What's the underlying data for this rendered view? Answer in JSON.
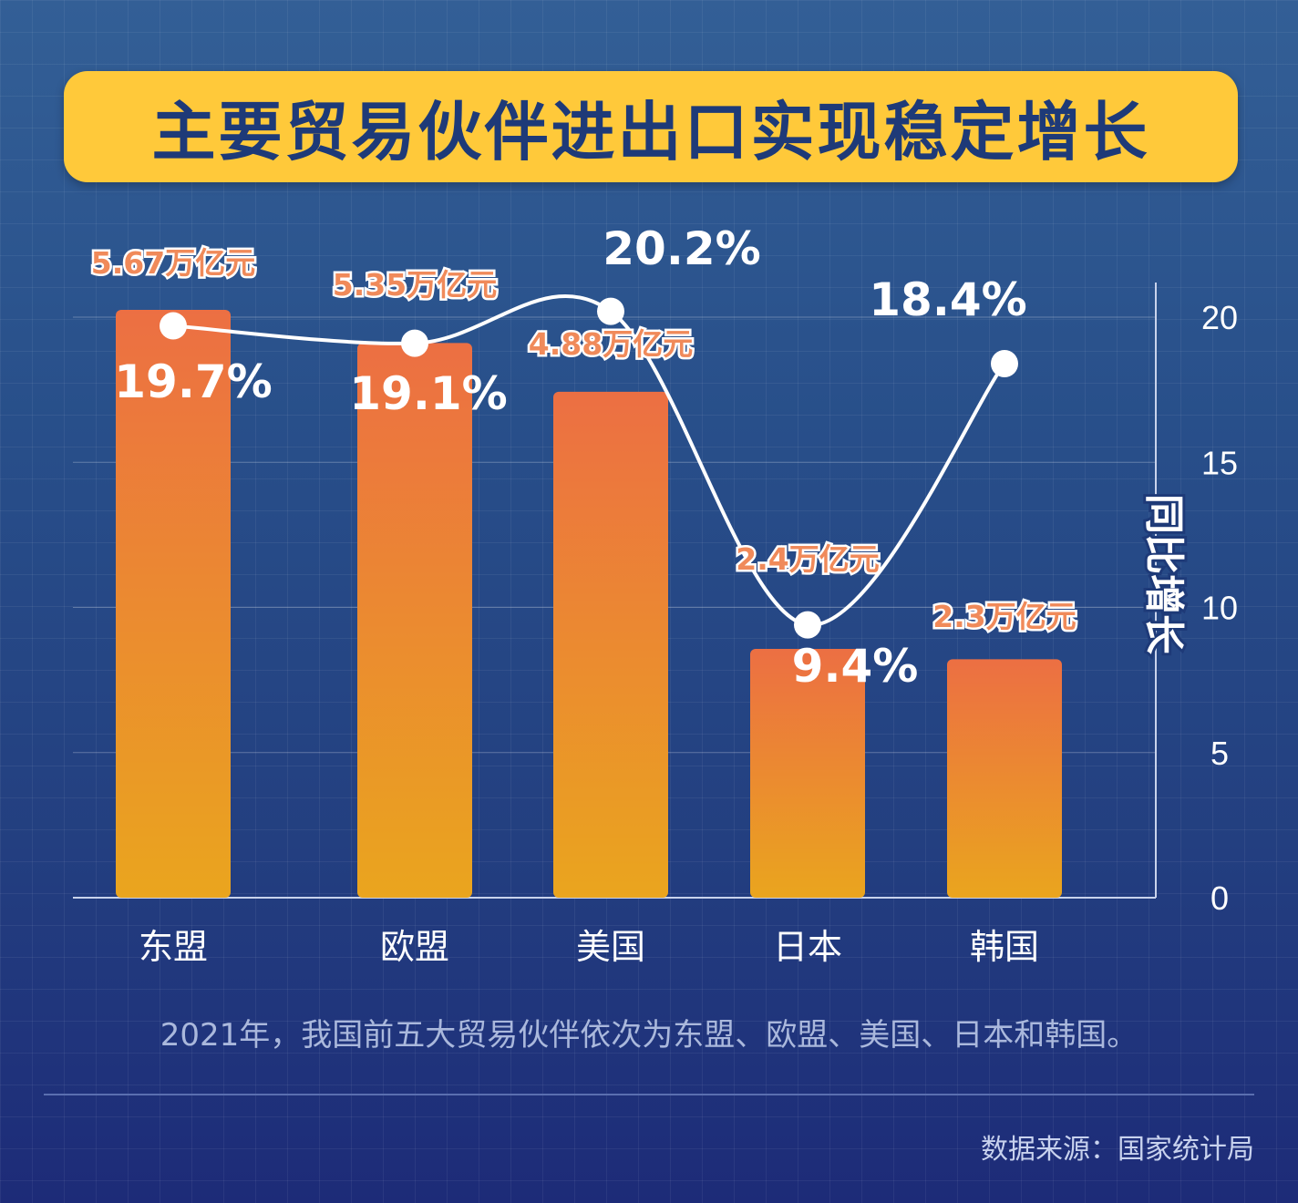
{
  "title": "主要贸易伙伴进出口实现稳定增长",
  "caption": "2021年，我国前五大贸易伙伴依次为东盟、欧盟、美国、日本和韩国。",
  "source": "数据来源：国家统计局",
  "colors": {
    "bar_top": "#ec6f43",
    "bar_bottom": "#eaa51e",
    "line": "#ffffff",
    "amount_label": "#f08a5a",
    "title_banner": "#ffc93a",
    "title_text": "#1e3a78"
  },
  "chart_data": {
    "type": "bar",
    "categories": [
      "东盟",
      "欧盟",
      "美国",
      "日本",
      "韩国"
    ],
    "series": [
      {
        "kind": "bar",
        "values": [
          5.67,
          5.35,
          4.88,
          2.4,
          2.3
        ],
        "labels": [
          "5.67万亿元",
          "5.35万亿元",
          "4.88万亿元",
          "2.4万亿元",
          "2.3万亿元"
        ]
      },
      {
        "kind": "line",
        "values": [
          19.7,
          19.1,
          20.2,
          9.4,
          18.4
        ],
        "labels": [
          "19.7%",
          "19.1%",
          "20.2%",
          "9.4%",
          "18.4%"
        ]
      }
    ],
    "ylabel": "同比增长",
    "yticks": [
      "0",
      "5",
      "10",
      "15",
      "20"
    ],
    "ylim": [
      0,
      21
    ],
    "grid": true
  }
}
